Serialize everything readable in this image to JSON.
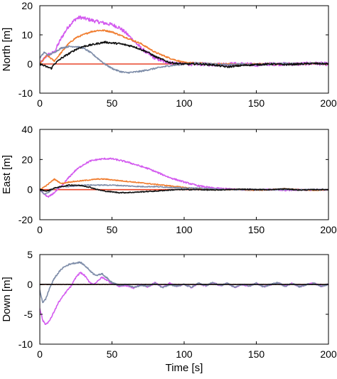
{
  "chart_data": [
    {
      "type": "line",
      "ylabel": "North [m]",
      "xlabel": "",
      "xlim": [
        0,
        200
      ],
      "ylim": [
        -10,
        20
      ],
      "xticks": [
        "0",
        "50",
        "100",
        "150",
        "200"
      ],
      "yticks": [
        "-10",
        "0",
        "10",
        "20"
      ],
      "series": [
        {
          "color": "#e8452a",
          "x": [
            0,
            200
          ],
          "y": [
            0,
            0
          ]
        },
        {
          "color": "#d35bef",
          "noise": 0.6,
          "x": [
            0,
            5,
            10,
            15,
            20,
            25,
            28,
            32,
            36,
            40,
            45,
            50,
            55,
            60,
            65,
            70,
            75,
            80,
            85,
            90,
            95,
            100,
            110,
            120,
            130,
            140,
            150,
            160,
            170,
            180,
            190,
            200
          ],
          "y": [
            0,
            3,
            4,
            9,
            13,
            15.5,
            16,
            15.5,
            15,
            14.5,
            14,
            13.5,
            12.5,
            10.5,
            8,
            5.5,
            3.5,
            2,
            1,
            0.5,
            0.2,
            0,
            0,
            -0.2,
            0,
            0,
            -0.3,
            0,
            0,
            0,
            0.2,
            0
          ]
        },
        {
          "color": "#f07c2e",
          "noise": 0.25,
          "x": [
            0,
            5,
            10,
            15,
            20,
            25,
            30,
            35,
            40,
            45,
            50,
            55,
            60,
            65,
            70,
            75,
            80,
            85,
            90,
            95,
            100,
            110,
            120,
            130,
            140,
            150,
            160,
            170,
            180,
            190,
            200
          ],
          "y": [
            0,
            3,
            1,
            4,
            7,
            9,
            10,
            11,
            11.5,
            11.5,
            11,
            10,
            9,
            8,
            7,
            5.5,
            4,
            3,
            2,
            1.2,
            0.5,
            0.3,
            0,
            0,
            -0.2,
            0,
            0,
            0,
            0,
            0.2,
            0
          ]
        },
        {
          "color": "#7d8ca8",
          "noise": 0.25,
          "x": [
            0,
            3,
            6,
            10,
            15,
            20,
            25,
            30,
            35,
            40,
            45,
            50,
            55,
            60,
            65,
            70,
            75,
            80,
            85,
            90,
            95,
            100,
            110,
            120,
            130,
            140,
            150,
            160,
            170,
            180,
            190,
            200
          ],
          "y": [
            2,
            4,
            3,
            4,
            5.5,
            6,
            6,
            5.5,
            4,
            2,
            0,
            -1.5,
            -2.5,
            -3,
            -2.8,
            -2.5,
            -2,
            -1.5,
            -1,
            -0.6,
            -0.3,
            0,
            0.3,
            0,
            -0.3,
            0,
            -0.3,
            0,
            0.2,
            0,
            0.3,
            0
          ]
        },
        {
          "color": "#111111",
          "noise": 0.3,
          "x": [
            0,
            5,
            8,
            10,
            15,
            20,
            25,
            30,
            35,
            40,
            45,
            50,
            55,
            60,
            65,
            70,
            75,
            80,
            85,
            90,
            95,
            100,
            110,
            120,
            130,
            140,
            150,
            160,
            170,
            180,
            190,
            200
          ],
          "y": [
            0,
            -1,
            -1.5,
            0,
            2,
            3.5,
            5,
            6,
            6.5,
            7,
            7.5,
            7.2,
            7,
            6.5,
            6,
            5,
            4,
            2.5,
            1.5,
            0.5,
            0.2,
            0,
            0,
            -0.3,
            -1,
            -0.5,
            -0.2,
            0,
            -0.2,
            0,
            0.2,
            0
          ]
        }
      ]
    },
    {
      "type": "line",
      "ylabel": "East [m]",
      "xlabel": "",
      "xlim": [
        0,
        200
      ],
      "ylim": [
        -20,
        40
      ],
      "xticks": [
        "0",
        "50",
        "100",
        "150",
        "200"
      ],
      "yticks": [
        "-20",
        "0",
        "20",
        "40"
      ],
      "series": [
        {
          "color": "#e8452a",
          "x": [
            0,
            200
          ],
          "y": [
            0,
            0
          ]
        },
        {
          "color": "#d35bef",
          "noise": 0.5,
          "x": [
            0,
            3,
            6,
            10,
            15,
            20,
            25,
            30,
            35,
            40,
            45,
            50,
            55,
            60,
            65,
            70,
            75,
            80,
            85,
            90,
            95,
            100,
            110,
            120,
            130,
            140,
            150,
            160,
            170,
            180,
            190,
            200
          ],
          "y": [
            0,
            -3,
            -5,
            -2,
            2,
            8,
            13,
            16.5,
            19,
            20,
            20.5,
            20.5,
            19.5,
            18.5,
            17,
            15.5,
            14,
            12,
            10,
            8,
            6.5,
            5,
            2.5,
            1,
            0.5,
            0,
            0,
            0,
            -0.5,
            0,
            -0.3,
            0
          ]
        },
        {
          "color": "#f07c2e",
          "noise": 0.3,
          "x": [
            0,
            5,
            10,
            15,
            20,
            25,
            30,
            35,
            40,
            45,
            50,
            55,
            60,
            65,
            70,
            75,
            80,
            85,
            90,
            95,
            100,
            110,
            120,
            130,
            140,
            150,
            160,
            170,
            180,
            190,
            200
          ],
          "y": [
            0,
            3,
            7,
            4,
            5,
            5.5,
            6,
            6.5,
            7,
            7,
            6.5,
            6,
            5.5,
            5,
            4.5,
            4,
            3.5,
            3,
            2.5,
            2,
            1.5,
            0.5,
            0,
            0,
            0,
            -0.5,
            0,
            0.5,
            0,
            -0.5,
            0
          ]
        },
        {
          "color": "#7d8ca8",
          "noise": 0.3,
          "x": [
            0,
            3,
            6,
            10,
            15,
            20,
            25,
            30,
            40,
            50,
            60,
            70,
            80,
            90,
            100,
            110,
            120,
            130,
            140,
            150,
            160,
            170,
            180,
            190,
            200
          ],
          "y": [
            0,
            -3,
            -2,
            1,
            2,
            2,
            2.5,
            3,
            3,
            3,
            2.5,
            2,
            2,
            1.5,
            1,
            1,
            0.5,
            0,
            0,
            0,
            0,
            0,
            0,
            0,
            0
          ]
        },
        {
          "color": "#111111",
          "noise": 0.3,
          "x": [
            0,
            5,
            10,
            15,
            20,
            25,
            30,
            35,
            40,
            45,
            50,
            55,
            60,
            65,
            70,
            75,
            80,
            85,
            90,
            95,
            100,
            110,
            120,
            130,
            140,
            150,
            160,
            170,
            180,
            190,
            200
          ],
          "y": [
            0,
            -1,
            1,
            2,
            3,
            3,
            2.5,
            1.5,
            0,
            -1,
            -1.5,
            -2,
            -2,
            -1.8,
            -1.5,
            -1.2,
            -1,
            -0.6,
            -0.3,
            0,
            0,
            0,
            -0.3,
            0,
            0.3,
            0,
            0,
            0.5,
            -0.3,
            0,
            0
          ]
        }
      ]
    },
    {
      "type": "line",
      "ylabel": "Down [m]",
      "xlabel": "Time [s]",
      "xlim": [
        0,
        200
      ],
      "ylim": [
        -10,
        5
      ],
      "xticks": [
        "0",
        "50",
        "100",
        "150",
        "200"
      ],
      "yticks": [
        "-10",
        "-5",
        "0",
        "5"
      ],
      "series": [
        {
          "color": "#e8452a",
          "x": [
            0,
            200
          ],
          "y": [
            0,
            0
          ]
        },
        {
          "color": "#d35bef",
          "noise": 0.12,
          "x": [
            0,
            2,
            4,
            7,
            10,
            13,
            16,
            19,
            22,
            25,
            28,
            31,
            34,
            37,
            40,
            43,
            46,
            49,
            52,
            55,
            60,
            65,
            70,
            75,
            80,
            85,
            90,
            95,
            100,
            105,
            110,
            115,
            120,
            125,
            130,
            135,
            140,
            145,
            150,
            155,
            160,
            165,
            170,
            175,
            180,
            185,
            190,
            195,
            200
          ],
          "y": [
            -4,
            -6,
            -6.7,
            -6,
            -4.5,
            -3,
            -2,
            -1,
            -0.2,
            1.2,
            2,
            1.5,
            0.5,
            0,
            0.5,
            1.2,
            0.8,
            0.3,
            0,
            -0.3,
            -0.2,
            -0.6,
            0,
            -0.4,
            0.3,
            -0.5,
            0.2,
            -0.3,
            0,
            -0.5,
            0.2,
            -0.3,
            0.3,
            -0.2,
            0.2,
            -0.5,
            0,
            -0.3,
            0.2,
            -0.4,
            0,
            0.3,
            -0.3,
            0.2,
            -0.4,
            0,
            0.2,
            -0.3,
            0
          ]
        },
        {
          "color": "#7d8ca8",
          "noise": 0.12,
          "x": [
            0,
            2,
            4,
            7,
            10,
            13,
            16,
            19,
            22,
            25,
            28,
            31,
            34,
            37,
            40,
            43,
            46,
            49,
            52,
            55,
            60,
            65,
            70,
            75,
            80,
            85,
            90,
            95,
            100,
            105,
            110,
            115,
            120,
            125,
            130,
            135,
            140,
            145,
            150,
            155,
            160,
            165,
            170,
            175,
            180,
            185,
            190,
            195,
            200
          ],
          "y": [
            -1,
            -3,
            -2.5,
            -0.5,
            1,
            2,
            2.8,
            3.2,
            3.5,
            3.6,
            3.7,
            3.2,
            2.5,
            1.8,
            1.5,
            1.8,
            1.2,
            0.5,
            0.2,
            -0.2,
            0,
            -0.5,
            -0.2,
            -0.3,
            0.2,
            -0.5,
            0,
            -0.3,
            0,
            -0.5,
            0.2,
            -0.2,
            0.3,
            -0.2,
            0.2,
            -0.5,
            0,
            -0.3,
            0.2,
            -0.4,
            0,
            0.3,
            -0.3,
            0.2,
            -0.4,
            0,
            0.2,
            -0.3,
            0
          ]
        },
        {
          "color": "#111111",
          "noise": 0.03,
          "x": [
            0,
            200
          ],
          "y": [
            0,
            0
          ]
        }
      ]
    }
  ]
}
